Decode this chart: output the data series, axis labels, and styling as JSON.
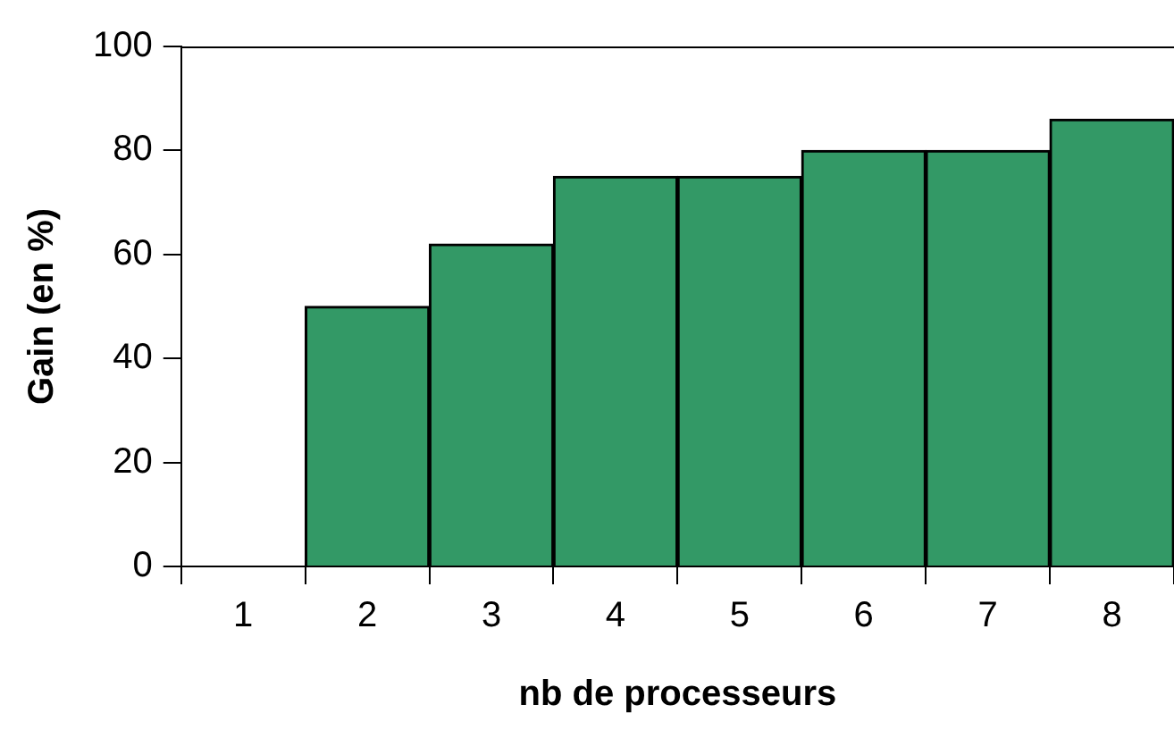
{
  "chart_data": {
    "type": "bar",
    "categories": [
      "1",
      "2",
      "3",
      "4",
      "5",
      "6",
      "7",
      "8"
    ],
    "values": [
      0,
      50,
      62,
      75,
      75,
      80,
      80,
      86
    ],
    "color": "#339966",
    "xlabel": "nb de processeurs",
    "ylabel": "Gain (en %)",
    "ylim": [
      0,
      100
    ],
    "yticks": [
      0,
      20,
      40,
      60,
      80,
      100
    ],
    "grid": false,
    "legend": false
  }
}
